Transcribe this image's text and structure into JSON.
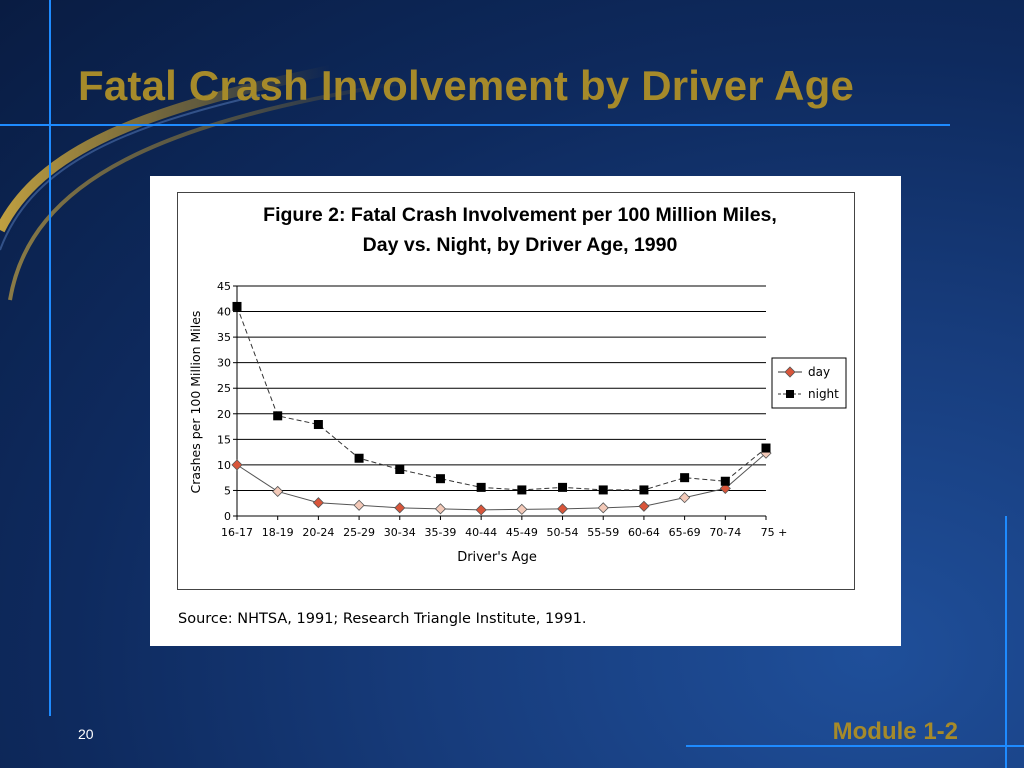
{
  "slide": {
    "title": "Fatal Crash Involvement by Driver Age",
    "slide_number": "20",
    "module_label": "Module 1-2",
    "title_color": "#a68a2a",
    "accent_line_color": "#1e8bff"
  },
  "figure": {
    "source_note": "Source: NHTSA, 1991; Research Triangle Institute, 1991."
  },
  "chart_data": {
    "type": "line",
    "title": "Figure 2: Fatal Crash Involvement per 100 Million Miles,",
    "subtitle": "Day vs. Night, by Driver Age, 1990",
    "xlabel": "Driver's Age",
    "ylabel": "Crashes per 100 Million Miles",
    "ylim": [
      0,
      45
    ],
    "yticks": [
      "0",
      "5",
      "10",
      "15",
      "20",
      "25",
      "30",
      "35",
      "40",
      "45"
    ],
    "categories": [
      "16-17",
      "18-19",
      "20-24",
      "25-29",
      "30-34",
      "35-39",
      "40-44",
      "45-49",
      "50-54",
      "55-59",
      "60-64",
      "65-69",
      "70-74",
      "75 +"
    ],
    "grid": true,
    "legend_position": "right",
    "series": [
      {
        "name": "day",
        "marker": "diamond",
        "line": "solid",
        "color": "#d9553a",
        "values": [
          10,
          4.8,
          2.6,
          2.1,
          1.6,
          1.4,
          1.2,
          1.3,
          1.4,
          1.6,
          1.9,
          3.6,
          5.4,
          12.3
        ]
      },
      {
        "name": "night",
        "marker": "square",
        "line": "dashed",
        "color": "#000000",
        "values": [
          41,
          19.6,
          17.9,
          11.3,
          9.1,
          7.3,
          5.6,
          5.1,
          5.6,
          5.1,
          5.1,
          7.5,
          6.8,
          13.3
        ]
      }
    ]
  }
}
